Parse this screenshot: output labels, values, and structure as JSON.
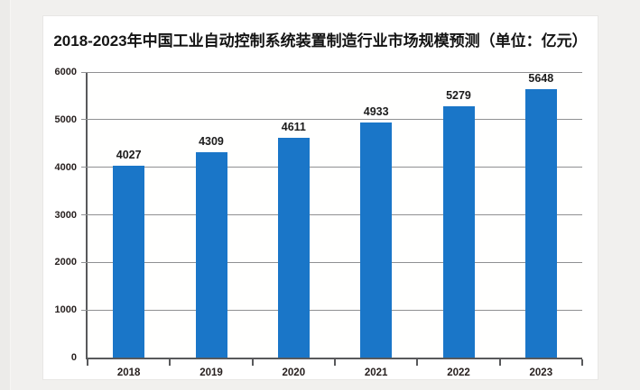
{
  "page": {
    "background_color": "#f1f0ee",
    "card_background_color": "#ffffff"
  },
  "title": "2018-2023年中国工业自动控制系统装置制造行业市场规模预测（单位：亿元）",
  "chart_data": {
    "type": "bar",
    "title": "2018-2023年中国工业自动控制系统装置制造行业市场规模预测",
    "unit": "亿元",
    "categories": [
      "2018",
      "2019",
      "2020",
      "2021",
      "2022",
      "2023"
    ],
    "values": [
      4027,
      4309,
      4611,
      4933,
      5279,
      5648
    ],
    "xlabel": "",
    "ylabel": "",
    "ylim": [
      0,
      6000
    ],
    "ytick_step": 1000,
    "ytick_labels": [
      "0",
      "1000",
      "2000",
      "3000",
      "4000",
      "5000",
      "6000"
    ],
    "grid": true,
    "legend": false,
    "data_labels": true,
    "bar_color": "#1a76c8",
    "grid_color": "#8f9092",
    "axis_color": "#58595b",
    "label_color": "#1b1b1b"
  }
}
